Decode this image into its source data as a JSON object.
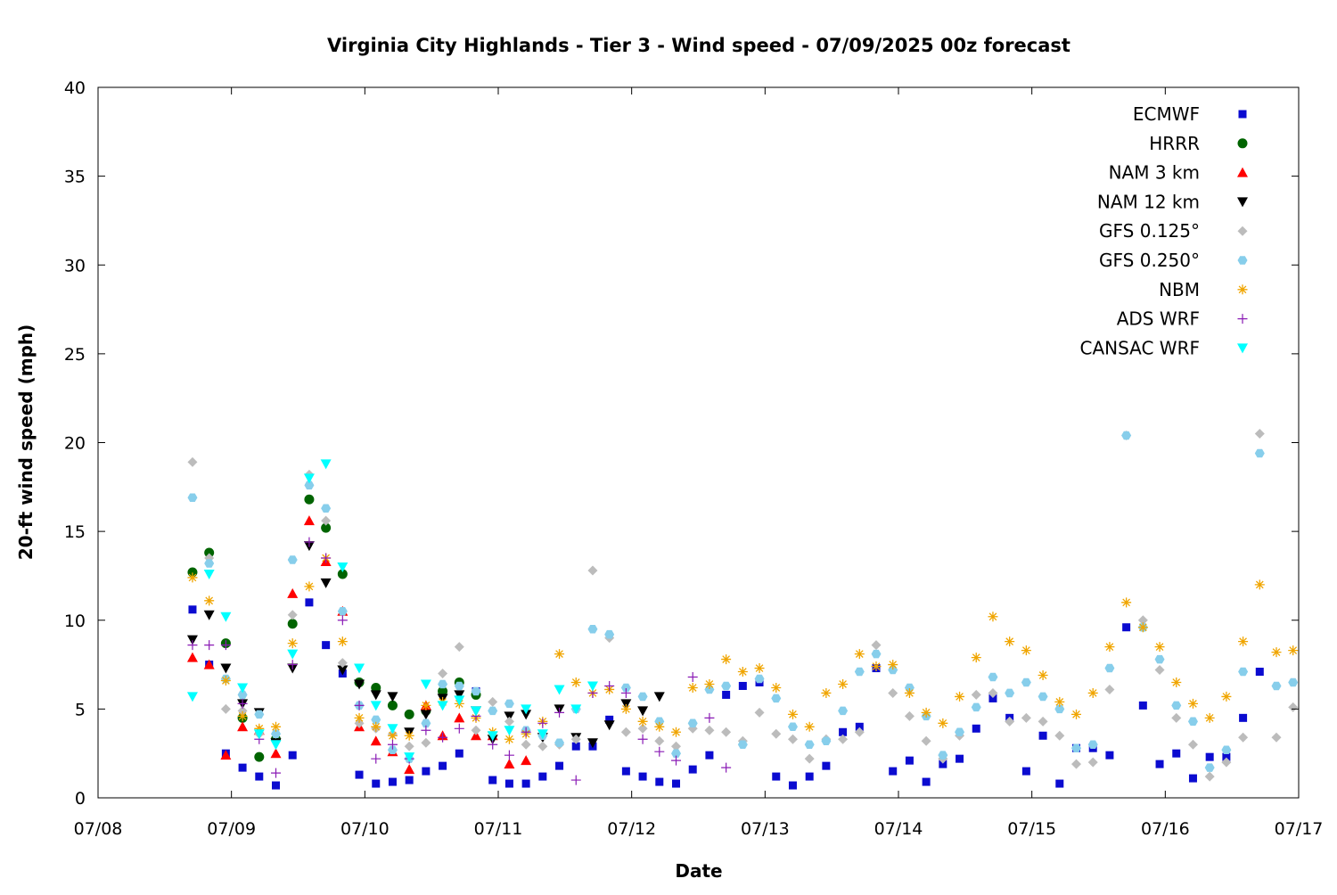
{
  "chart_data": {
    "type": "scatter",
    "title": "Virginia City Highlands - Tier 3 - Wind speed - 07/09/2025 00z forecast",
    "xlabel": "Date",
    "ylabel": "20-ft wind speed (mph)",
    "x_unit": "day of July 2025",
    "xlim": [
      8,
      17
    ],
    "ylim": [
      0,
      40
    ],
    "xticks": [
      8,
      9,
      10,
      11,
      12,
      13,
      14,
      15,
      16,
      17
    ],
    "xtick_labels": [
      "07/08",
      "07/09",
      "07/10",
      "07/11",
      "07/12",
      "07/13",
      "07/14",
      "07/15",
      "07/16",
      "07/17"
    ],
    "yticks": [
      0,
      5,
      10,
      15,
      20,
      25,
      30,
      35,
      40
    ],
    "ytick_labels": [
      "0",
      "5",
      "10",
      "15",
      "20",
      "25",
      "30",
      "35",
      "40"
    ],
    "grid": false,
    "legend_position": "top-right",
    "series": [
      {
        "name": "ECMWF",
        "marker": "square",
        "color": "#0b0bd0",
        "x": [
          8.708,
          8.833,
          8.958,
          9.083,
          9.208,
          9.333,
          9.458,
          9.583,
          9.708,
          9.833,
          9.958,
          10.083,
          10.208,
          10.333,
          10.458,
          10.583,
          10.708,
          10.833,
          10.958,
          11.083,
          11.208,
          11.333,
          11.458,
          11.583,
          11.708,
          11.833,
          11.958,
          12.083,
          12.208,
          12.333,
          12.458,
          12.583,
          12.708,
          12.833,
          12.958,
          13.083,
          13.208,
          13.333,
          13.458,
          13.583,
          13.708,
          13.833,
          13.958,
          14.083,
          14.208,
          14.333,
          14.458,
          14.583,
          14.708,
          14.833,
          14.958,
          15.083,
          15.208,
          15.333,
          15.458,
          15.583,
          15.708,
          15.833,
          15.958,
          16.083,
          16.208,
          16.333,
          16.458,
          16.583,
          16.708
        ],
        "y": [
          10.6,
          7.5,
          2.5,
          1.7,
          1.2,
          0.7,
          2.4,
          11.0,
          8.6,
          7.0,
          1.3,
          0.8,
          0.9,
          1.0,
          1.5,
          1.8,
          2.5,
          6.0,
          1.0,
          0.8,
          0.8,
          1.2,
          1.8,
          2.9,
          2.9,
          4.4,
          1.5,
          1.2,
          0.9,
          0.8,
          1.6,
          2.4,
          5.8,
          6.3,
          6.5,
          1.2,
          0.7,
          1.2,
          1.8,
          3.7,
          4.0,
          7.3,
          1.5,
          2.1,
          0.9,
          1.9,
          2.2,
          3.9,
          5.6,
          4.5,
          1.5,
          3.5,
          0.8,
          2.8,
          2.8,
          2.4,
          9.6,
          5.2,
          1.9,
          2.5,
          1.1,
          2.3,
          2.3,
          4.5,
          7.1
        ]
      },
      {
        "name": "HRRR",
        "marker": "circle",
        "color": "#006400",
        "x": [
          8.708,
          8.833,
          8.958,
          9.083,
          9.208,
          9.333,
          9.458,
          9.583,
          9.708,
          9.833,
          9.958,
          10.083,
          10.208,
          10.333,
          10.458,
          10.583,
          10.708,
          10.833
        ],
        "y": [
          12.7,
          13.8,
          8.7,
          4.5,
          2.3,
          3.3,
          9.8,
          16.8,
          15.2,
          12.6,
          6.5,
          6.2,
          5.2,
          4.7,
          4.9,
          6.0,
          6.5,
          5.8
        ]
      },
      {
        "name": "NAM 3 km",
        "marker": "triangle-up",
        "color": "#ff0000",
        "x": [
          8.708,
          8.833,
          8.958,
          9.083,
          9.208,
          9.333,
          9.458,
          9.583,
          9.708,
          9.833,
          9.958,
          10.083,
          10.208,
          10.333,
          10.458,
          10.583,
          10.708,
          10.833,
          10.958,
          11.083,
          11.208
        ],
        "y": [
          7.9,
          7.5,
          2.4,
          4.0,
          3.8,
          2.5,
          11.5,
          15.6,
          13.3,
          10.5,
          4.0,
          3.2,
          2.6,
          1.6,
          5.2,
          3.5,
          4.5,
          3.5,
          3.5,
          1.9,
          2.1
        ]
      },
      {
        "name": "NAM 12 km",
        "marker": "triangle-down",
        "color": "#000000",
        "x": [
          8.708,
          8.833,
          8.958,
          9.083,
          9.208,
          9.333,
          9.458,
          9.583,
          9.708,
          9.833,
          9.958,
          10.083,
          10.208,
          10.333,
          10.458,
          10.583,
          10.708,
          10.833,
          10.958,
          11.083,
          11.208,
          11.333,
          11.458,
          11.583,
          11.708,
          11.833,
          11.958,
          12.083,
          12.208
        ],
        "y": [
          8.9,
          10.3,
          7.3,
          5.3,
          4.8,
          3.1,
          7.3,
          14.2,
          12.1,
          7.2,
          6.4,
          5.8,
          5.7,
          3.7,
          4.7,
          5.6,
          5.8,
          4.9,
          3.3,
          4.6,
          4.7,
          3.4,
          5.0,
          3.4,
          3.1,
          4.1,
          5.3,
          4.9,
          5.7
        ]
      },
      {
        "name": "GFS 0.125°",
        "marker": "diamond",
        "color": "#bcbcbc",
        "x": [
          8.708,
          8.833,
          8.958,
          9.083,
          9.208,
          9.333,
          9.458,
          9.583,
          9.708,
          9.833,
          9.958,
          10.083,
          10.208,
          10.333,
          10.458,
          10.583,
          10.708,
          10.833,
          10.958,
          11.083,
          11.208,
          11.333,
          11.458,
          11.583,
          11.708,
          11.833,
          11.958,
          12.083,
          12.208,
          12.333,
          12.458,
          12.583,
          12.708,
          12.833,
          12.958,
          13.083,
          13.208,
          13.333,
          13.458,
          13.583,
          13.708,
          13.833,
          13.958,
          14.083,
          14.208,
          14.333,
          14.458,
          14.583,
          14.708,
          14.833,
          14.958,
          15.083,
          15.208,
          15.333,
          15.458,
          15.583,
          15.708,
          15.833,
          15.958,
          16.083,
          16.208,
          16.333,
          16.458,
          16.583,
          16.708,
          16.833,
          16.958
        ],
        "y": [
          18.9,
          13.5,
          5.0,
          4.9,
          3.6,
          3.6,
          10.3,
          18.2,
          15.6,
          7.6,
          4.2,
          3.9,
          3.6,
          2.9,
          3.1,
          7.0,
          8.5,
          3.8,
          5.4,
          4.3,
          3.0,
          2.9,
          3.0,
          3.3,
          12.8,
          9.0,
          3.7,
          3.9,
          3.2,
          2.9,
          3.9,
          3.8,
          3.7,
          3.2,
          4.8,
          3.6,
          3.3,
          2.2,
          3.3,
          3.3,
          3.7,
          8.6,
          5.9,
          4.6,
          3.2,
          2.2,
          3.5,
          5.8,
          5.9,
          4.3,
          4.5,
          4.3,
          3.5,
          1.9,
          2.0,
          6.1,
          20.4,
          10.0,
          7.2,
          4.5,
          3.0,
          1.2,
          2.0,
          3.4,
          20.5,
          3.4,
          5.1
        ]
      },
      {
        "name": "GFS 0.250°",
        "marker": "hexagon",
        "color": "#87ceeb",
        "x": [
          8.708,
          8.833,
          8.958,
          9.083,
          9.208,
          9.333,
          9.458,
          9.583,
          9.708,
          9.833,
          9.958,
          10.083,
          10.208,
          10.333,
          10.458,
          10.583,
          10.708,
          10.833,
          10.958,
          11.083,
          11.208,
          11.333,
          11.458,
          11.583,
          11.708,
          11.833,
          11.958,
          12.083,
          12.208,
          12.333,
          12.458,
          12.583,
          12.708,
          12.833,
          12.958,
          13.083,
          13.208,
          13.333,
          13.458,
          13.583,
          13.708,
          13.833,
          13.958,
          14.083,
          14.208,
          14.333,
          14.458,
          14.583,
          14.708,
          14.833,
          14.958,
          15.083,
          15.208,
          15.333,
          15.458,
          15.583,
          15.708,
          15.833,
          15.958,
          16.083,
          16.208,
          16.333,
          16.458,
          16.583,
          16.708,
          16.833,
          16.958
        ],
        "y": [
          16.9,
          13.2,
          6.7,
          5.8,
          4.7,
          3.6,
          13.4,
          17.6,
          16.3,
          10.5,
          5.2,
          4.4,
          2.7,
          2.2,
          4.2,
          6.4,
          6.3,
          6.0,
          4.9,
          5.3,
          3.8,
          3.5,
          3.1,
          5.0,
          9.5,
          9.2,
          6.2,
          5.7,
          4.3,
          2.5,
          4.2,
          6.1,
          6.3,
          3.0,
          6.7,
          5.6,
          4.0,
          3.0,
          3.2,
          4.9,
          7.1,
          8.1,
          7.2,
          6.2,
          4.6,
          2.4,
          3.7,
          5.1,
          6.8,
          5.9,
          6.5,
          5.7,
          5.0,
          2.8,
          3.0,
          7.3,
          20.4,
          9.6,
          7.8,
          5.2,
          4.3,
          1.7,
          2.7,
          7.1,
          19.4,
          6.3,
          6.5
        ]
      },
      {
        "name": "NBM",
        "marker": "star",
        "color": "#f0a500",
        "x": [
          8.708,
          8.833,
          8.958,
          9.083,
          9.208,
          9.333,
          9.458,
          9.583,
          9.708,
          9.833,
          9.958,
          10.083,
          10.208,
          10.333,
          10.458,
          10.583,
          10.708,
          10.833,
          10.958,
          11.083,
          11.208,
          11.333,
          11.458,
          11.583,
          11.708,
          11.833,
          11.958,
          12.083,
          12.208,
          12.333,
          12.458,
          12.583,
          12.708,
          12.833,
          12.958,
          13.083,
          13.208,
          13.333,
          13.458,
          13.583,
          13.708,
          13.833,
          13.958,
          14.083,
          14.208,
          14.333,
          14.458,
          14.583,
          14.708,
          14.833,
          14.958,
          15.083,
          15.208,
          15.333,
          15.458,
          15.583,
          15.708,
          15.833,
          15.958,
          16.083,
          16.208,
          16.333,
          16.458,
          16.583,
          16.708,
          16.833,
          16.958
        ],
        "y": [
          12.4,
          11.1,
          6.6,
          4.6,
          3.9,
          4.0,
          8.7,
          11.9,
          13.5,
          8.8,
          4.5,
          4.0,
          3.5,
          3.5,
          5.2,
          5.4,
          5.3,
          4.5,
          3.7,
          3.3,
          3.6,
          4.3,
          8.1,
          6.5,
          5.9,
          6.1,
          5.0,
          4.3,
          4.0,
          3.7,
          6.2,
          6.4,
          7.8,
          7.1,
          7.3,
          6.2,
          4.7,
          4.0,
          5.9,
          6.4,
          8.1,
          7.4,
          7.5,
          5.9,
          4.8,
          4.2,
          5.7,
          7.9,
          10.2,
          8.8,
          8.3,
          6.9,
          5.4,
          4.7,
          5.9,
          8.5,
          11.0,
          9.6,
          8.5,
          6.5,
          5.3,
          4.5,
          5.7,
          8.8,
          12.0,
          8.2,
          8.3
        ]
      },
      {
        "name": "ADS WRF",
        "marker": "plus",
        "color": "#8a1bb5",
        "x": [
          8.708,
          8.833,
          8.958,
          9.083,
          9.208,
          9.333,
          9.458,
          9.583,
          9.708,
          9.833,
          9.958,
          10.083,
          10.208,
          10.333,
          10.458,
          10.583,
          10.708,
          10.833,
          10.958,
          11.083,
          11.208,
          11.333,
          11.458,
          11.583,
          11.708,
          11.833,
          11.958,
          12.083,
          12.208,
          12.333,
          12.458,
          12.583,
          12.708
        ],
        "y": [
          8.6,
          8.6,
          8.6,
          5.3,
          3.3,
          1.4,
          7.5,
          14.4,
          13.5,
          10.0,
          5.2,
          2.2,
          3.0,
          2.2,
          3.8,
          3.4,
          3.9,
          4.6,
          3.0,
          2.4,
          3.7,
          4.2,
          4.8,
          1.0,
          5.9,
          6.3,
          5.9,
          3.3,
          2.6,
          2.1,
          6.8,
          4.5,
          1.7
        ]
      },
      {
        "name": "CANSAC WRF",
        "marker": "triangle-down",
        "color": "#00ffff",
        "x": [
          8.708,
          8.833,
          8.958,
          9.083,
          9.208,
          9.333,
          9.458,
          9.583,
          9.708,
          9.833,
          9.958,
          10.083,
          10.208,
          10.333,
          10.458,
          10.583,
          10.708,
          10.833,
          10.958,
          11.083,
          11.208,
          11.333,
          11.458,
          11.583,
          11.708
        ],
        "y": [
          5.7,
          12.6,
          10.2,
          6.2,
          3.6,
          3.0,
          8.1,
          18.0,
          18.8,
          13.0,
          7.3,
          5.2,
          3.9,
          2.3,
          6.4,
          5.2,
          5.5,
          4.9,
          3.5,
          3.8,
          5.0,
          3.6,
          6.1,
          5.0,
          6.3
        ]
      }
    ]
  }
}
